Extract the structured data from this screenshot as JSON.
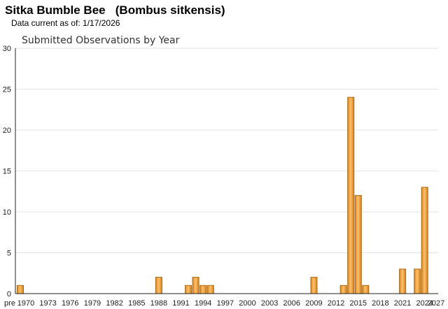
{
  "header": {
    "species_title": "Sitka Bumble Bee   (Bombus sitkensis)",
    "data_current": "Data current as of: 1/17/2026"
  },
  "chart_data": {
    "type": "bar",
    "title": "Submitted Observations by Year",
    "xlabel": "",
    "ylabel": "",
    "ylim": [
      0,
      30
    ],
    "y_ticks": [
      0,
      5,
      10,
      15,
      20,
      25,
      30
    ],
    "x_tick_labels": [
      "pre",
      "1970",
      "1973",
      "1976",
      "1979",
      "1982",
      "1985",
      "1988",
      "1991",
      "1994",
      "1997",
      "2000",
      "2003",
      "2006",
      "2009",
      "2012",
      "2015",
      "2018",
      "2021",
      "2024",
      "2027"
    ],
    "categories": [
      "pre",
      "1988",
      "1992",
      "1993",
      "1994",
      "1995",
      "2009",
      "2013",
      "2014",
      "2015",
      "2016",
      "2021",
      "2023",
      "2024"
    ],
    "values": [
      1,
      2,
      1,
      2,
      1,
      1,
      2,
      1,
      24,
      12,
      1,
      3,
      3,
      13
    ],
    "grid": true,
    "legend": "none",
    "bar_color": "#f0a040",
    "bar_edge_color": "#a86a14"
  }
}
